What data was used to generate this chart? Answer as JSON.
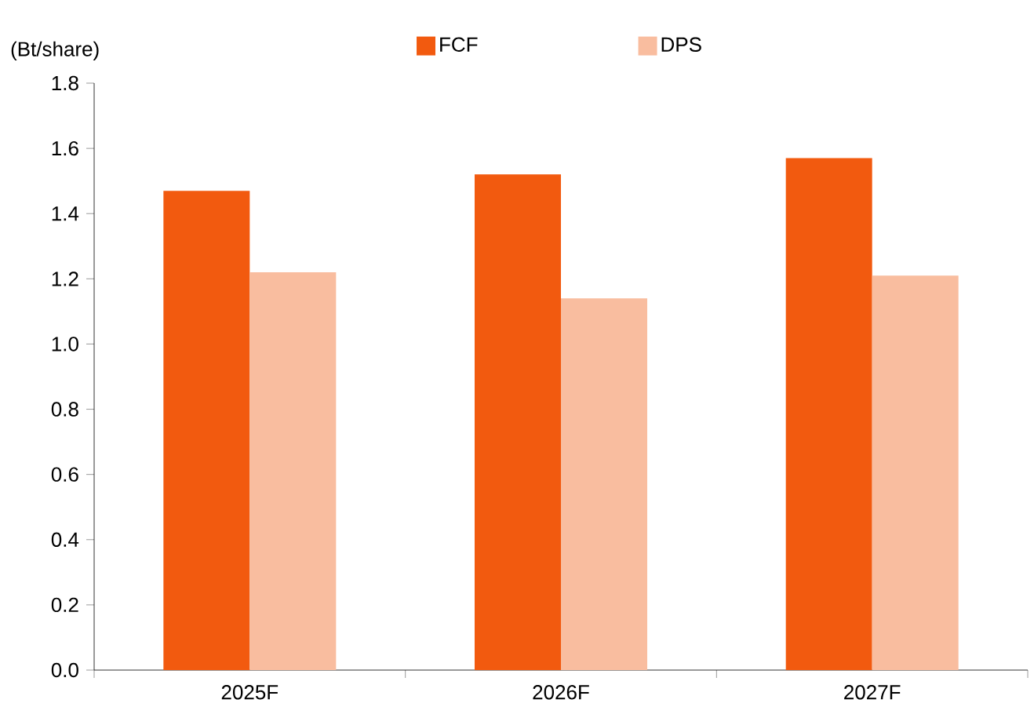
{
  "chart_data": {
    "type": "bar",
    "ylabel": "(Bt/share)",
    "categories": [
      "2025F",
      "2026F",
      "2027F"
    ],
    "series": [
      {
        "name": "FCF",
        "color": "#f25a0f",
        "values": [
          1.47,
          1.52,
          1.57
        ]
      },
      {
        "name": "DPS",
        "color": "#f9bd9f",
        "values": [
          1.22,
          1.14,
          1.21
        ]
      }
    ],
    "ylim": [
      0,
      1.8
    ],
    "yticks": [
      {
        "value": 0,
        "label": "0.0"
      },
      {
        "value": 0.2,
        "label": "0.2"
      },
      {
        "value": 0.4,
        "label": "0.4"
      },
      {
        "value": 0.6,
        "label": "0.6"
      },
      {
        "value": 0.8,
        "label": "0.8"
      },
      {
        "value": 1.0,
        "label": "1.0"
      },
      {
        "value": 1.2,
        "label": "1.2"
      },
      {
        "value": 1.4,
        "label": "1.4"
      },
      {
        "value": 1.6,
        "label": "1.6"
      },
      {
        "value": 1.8,
        "label": "1.8"
      }
    ],
    "grid": false,
    "legend": "top"
  }
}
